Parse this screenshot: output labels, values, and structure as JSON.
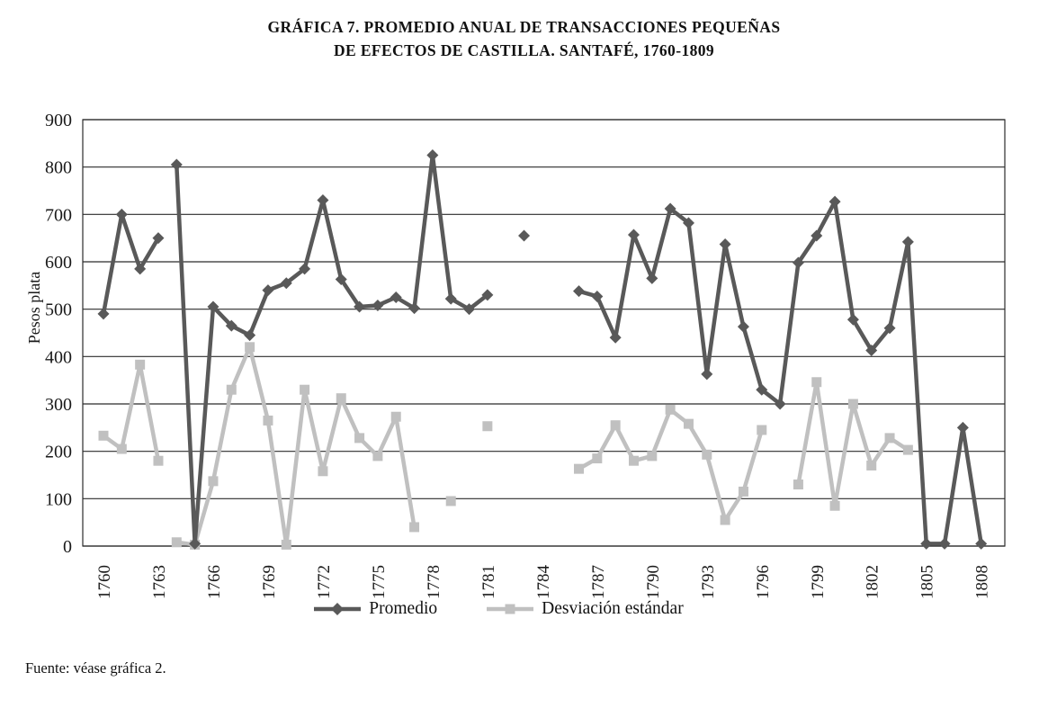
{
  "title": {
    "line1": "GRÁFICA 7. PROMEDIO ANUAL DE TRANSACCIONES PEQUEÑAS",
    "line2": "DE EFECTOS DE CASTILLA. SANTAFÉ, 1760-1809"
  },
  "footer": {
    "source": "Fuente: véase gráfica 2."
  },
  "colors": {
    "promedio": "#595959",
    "desviacion": "#c0c0c0",
    "grid": "#2b2b2b",
    "text": "#1a1a1a"
  },
  "chart_data": {
    "type": "line",
    "title": "GRÁFICA 7. PROMEDIO ANUAL DE TRANSACCIONES PEQUEÑAS DE EFECTOS DE CASTILLA. SANTAFÉ, 1760-1809",
    "xlabel": "",
    "ylabel": "Pesos plata",
    "ylim": [
      0,
      900
    ],
    "ytick_step": 100,
    "grid": true,
    "legend_position": "bottom",
    "xticks": [
      1760,
      1763,
      1766,
      1769,
      1772,
      1775,
      1778,
      1781,
      1784,
      1787,
      1790,
      1793,
      1796,
      1799,
      1802,
      1805,
      1808
    ],
    "x": [
      1760,
      1761,
      1762,
      1763,
      1764,
      1765,
      1766,
      1767,
      1768,
      1769,
      1770,
      1771,
      1772,
      1773,
      1774,
      1775,
      1776,
      1777,
      1778,
      1779,
      1780,
      1781,
      1782,
      1783,
      1784,
      1785,
      1786,
      1787,
      1788,
      1789,
      1790,
      1791,
      1792,
      1793,
      1794,
      1795,
      1796,
      1797,
      1798,
      1799,
      1800,
      1801,
      1802,
      1803,
      1804,
      1805,
      1806,
      1807,
      1808
    ],
    "gap_after_years": [
      1763
    ],
    "series": [
      {
        "name": "Promedio",
        "marker": "diamond",
        "color": "#595959",
        "values": [
          490,
          700,
          585,
          650,
          805,
          5,
          505,
          465,
          445,
          540,
          555,
          585,
          730,
          563,
          505,
          508,
          525,
          502,
          825,
          522,
          500,
          530,
          null,
          655,
          null,
          null,
          538,
          527,
          440,
          657,
          565,
          712,
          682,
          363,
          637,
          463,
          330,
          300,
          598,
          655,
          727,
          478,
          413,
          460,
          642,
          5,
          5,
          250,
          5
        ]
      },
      {
        "name": "Desviación estándar",
        "marker": "square",
        "color": "#c0c0c0",
        "values": [
          233,
          205,
          383,
          180,
          8,
          3,
          137,
          330,
          420,
          265,
          3,
          330,
          158,
          312,
          228,
          190,
          273,
          40,
          null,
          95,
          null,
          253,
          null,
          null,
          null,
          null,
          163,
          185,
          255,
          180,
          190,
          288,
          258,
          193,
          55,
          115,
          245,
          null,
          130,
          346,
          85,
          300,
          170,
          228,
          203,
          null,
          null,
          null,
          null
        ]
      }
    ]
  }
}
